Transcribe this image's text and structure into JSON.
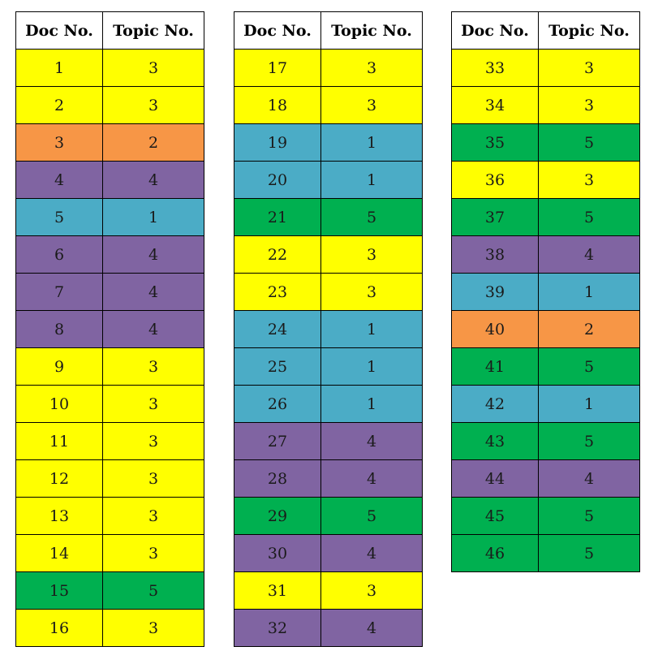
{
  "header": {
    "doc": "Doc No.",
    "topic": "Topic No."
  },
  "colors": {
    "1": "#4bacc6",
    "2": "#f79646",
    "3": "#ffff00",
    "4": "#8064a2",
    "5": "#00b050"
  },
  "tables": [
    [
      [
        1,
        3
      ],
      [
        2,
        3
      ],
      [
        3,
        2
      ],
      [
        4,
        4
      ],
      [
        5,
        1
      ],
      [
        6,
        4
      ],
      [
        7,
        4
      ],
      [
        8,
        4
      ],
      [
        9,
        3
      ],
      [
        10,
        3
      ],
      [
        11,
        3
      ],
      [
        12,
        3
      ],
      [
        13,
        3
      ],
      [
        14,
        3
      ],
      [
        15,
        5
      ],
      [
        16,
        3
      ]
    ],
    [
      [
        17,
        3
      ],
      [
        18,
        3
      ],
      [
        19,
        1
      ],
      [
        20,
        1
      ],
      [
        21,
        5
      ],
      [
        22,
        3
      ],
      [
        23,
        3
      ],
      [
        24,
        1
      ],
      [
        25,
        1
      ],
      [
        26,
        1
      ],
      [
        27,
        4
      ],
      [
        28,
        4
      ],
      [
        29,
        5
      ],
      [
        30,
        4
      ],
      [
        31,
        3
      ],
      [
        32,
        4
      ]
    ],
    [
      [
        33,
        3
      ],
      [
        34,
        3
      ],
      [
        35,
        5
      ],
      [
        36,
        3
      ],
      [
        37,
        5
      ],
      [
        38,
        4
      ],
      [
        39,
        1
      ],
      [
        40,
        2
      ],
      [
        41,
        5
      ],
      [
        42,
        1
      ],
      [
        43,
        5
      ],
      [
        44,
        4
      ],
      [
        45,
        5
      ],
      [
        46,
        5
      ]
    ]
  ]
}
